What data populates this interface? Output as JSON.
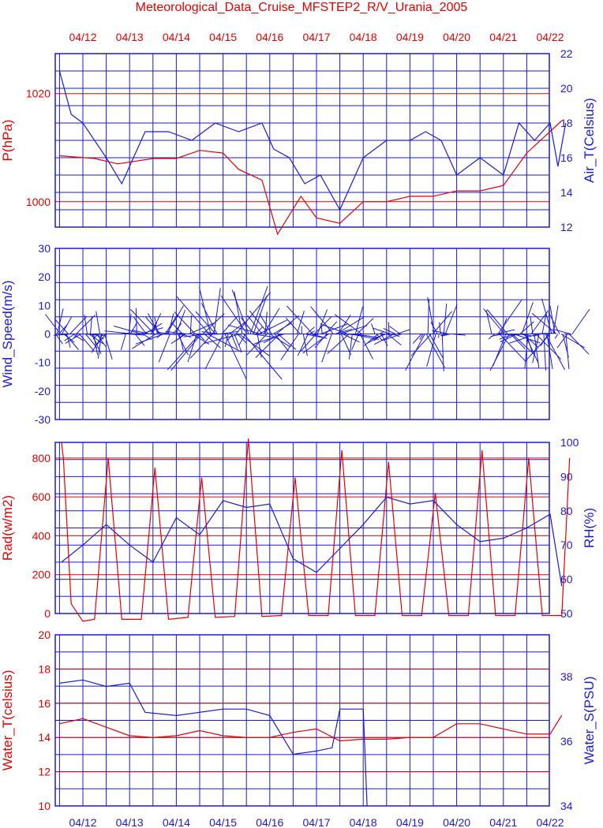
{
  "title": "Meteorological_Data_Cruise_MFSTEP2_R/V_Urania_2005",
  "colors": {
    "red": "#e60000",
    "blue": "#1a1ad6"
  },
  "chart_data": [
    {
      "type": "line",
      "date_ticks": [
        "04/12",
        "04/13",
        "04/14",
        "04/15",
        "04/16",
        "04/17",
        "04/18",
        "04/19",
        "04/20",
        "04/21",
        "04/22"
      ],
      "left_axis": {
        "label": "P(hPa)",
        "ticks": [
          1000,
          1020
        ],
        "color": "red"
      },
      "right_axis": {
        "label": "Air_T(Celsius)",
        "ticks": [
          12,
          14,
          16,
          18,
          20,
          22
        ],
        "ylim": [
          12,
          22
        ],
        "color": "blue"
      },
      "series": [
        {
          "axis": "left",
          "color": "red",
          "x": [
            "04/11 12:00",
            "04/12 06:00",
            "04/12 18:00",
            "04/13 12:00",
            "04/14 00:00",
            "04/14 12:00",
            "04/15 00:00",
            "04/15 08:00",
            "04/15 20:00",
            "04/16 04:00",
            "04/16 16:00",
            "04/17 00:00",
            "04/17 12:00",
            "04/18 00:00",
            "04/18 12:00",
            "04/19 00:00",
            "04/19 12:00",
            "04/20 00:00",
            "04/20 12:00",
            "04/21 00:00",
            "04/21 12:00",
            "04/22 06:00"
          ],
          "y": [
            1008.5,
            1008,
            1007,
            1008,
            1008,
            1009.5,
            1009,
            1006,
            1004,
            994,
            1001,
            997,
            996,
            1000,
            1000,
            1001,
            1001,
            1002,
            1002,
            1003,
            1009,
            1015
          ]
        },
        {
          "axis": "right",
          "color": "blue",
          "x": [
            "04/11 12:00",
            "04/11 18:00",
            "04/12 00:00",
            "04/12 12:00",
            "04/12 20:00",
            "04/13 08:00",
            "04/13 20:00",
            "04/14 08:00",
            "04/14 20:00",
            "04/15 08:00",
            "04/15 20:00",
            "04/16 02:00",
            "04/16 10:00",
            "04/16 18:00",
            "04/17 02:00",
            "04/17 12:00",
            "04/18 00:00",
            "04/18 12:00",
            "04/19 00:00",
            "04/19 08:00",
            "04/19 16:00",
            "04/20 00:00",
            "04/20 12:00",
            "04/21 00:00",
            "04/21 08:00",
            "04/21 16:00",
            "04/22 00:00",
            "04/22 04:00",
            "04/22 08:00"
          ],
          "y": [
            21,
            18.5,
            18,
            16,
            14.5,
            17.5,
            17.5,
            17,
            18,
            17.5,
            18,
            16.5,
            16,
            14.5,
            15,
            13,
            16,
            17,
            17,
            17.5,
            17,
            15,
            16,
            15,
            18,
            17,
            18,
            15.5,
            18
          ]
        }
      ]
    },
    {
      "type": "line",
      "date_ticks": [
        "04/12",
        "04/13",
        "04/14",
        "04/15",
        "04/16",
        "04/17",
        "04/18",
        "04/19",
        "04/20",
        "04/21",
        "04/22"
      ],
      "left_axis": {
        "label": "Wind_Speed(m/s)",
        "ticks": [
          -30,
          -20,
          -10,
          0,
          10,
          20,
          30
        ],
        "ylim": [
          -30,
          30
        ],
        "color": "blue"
      },
      "segments": [
        {
          "from": "04/11 10:00",
          "to": "04/12 12:00",
          "u_max": 8,
          "v_max": 9
        },
        {
          "from": "04/12 22:00",
          "to": "04/14 12:00",
          "u_max": 10,
          "v_max": 10
        },
        {
          "from": "04/14 12:00",
          "to": "04/15 16:00",
          "u_max": 14,
          "v_max": 17
        },
        {
          "from": "04/15 16:00",
          "to": "04/16 08:00",
          "u_max": 12,
          "v_max": 10
        },
        {
          "from": "04/16 14:00",
          "to": "04/18 00:00",
          "u_max": 10,
          "v_max": 10
        },
        {
          "from": "04/18 06:00",
          "to": "04/18 20:00",
          "u_max": 7,
          "v_max": 5
        },
        {
          "from": "04/19 06:00",
          "to": "04/19 22:00",
          "u_max": 8,
          "v_max": 14
        },
        {
          "from": "04/20 18:00",
          "to": "04/22 12:00",
          "u_max": 10,
          "v_max": 13
        }
      ]
    },
    {
      "type": "line",
      "date_ticks": [
        "04/12",
        "04/13",
        "04/14",
        "04/15",
        "04/16",
        "04/17",
        "04/18",
        "04/19",
        "04/20",
        "04/21",
        "04/22"
      ],
      "left_axis": {
        "label": "Rad(w/m2)",
        "ticks": [
          0,
          200,
          400,
          600,
          800
        ],
        "color": "red"
      },
      "right_axis": {
        "label": "RH(%)",
        "ticks": [
          50,
          60,
          70,
          80,
          90,
          100
        ],
        "ylim": [
          50,
          100
        ],
        "color": "blue"
      },
      "series": [
        {
          "axis": "left",
          "color": "red",
          "x": [
            "04/11 13:00",
            "04/11 14:00",
            "04/11 18:00",
            "04/12 00:00",
            "04/12 06:00",
            "04/12 13:00",
            "04/12 20:00",
            "04/13 06:00",
            "04/13 13:00",
            "04/13 20:00",
            "04/14 06:00",
            "04/14 13:00",
            "04/14 20:00",
            "04/15 06:00",
            "04/15 13:00",
            "04/15 20:00",
            "04/16 06:00",
            "04/16 13:00",
            "04/16 20:00",
            "04/17 06:00",
            "04/17 13:00",
            "04/17 20:00",
            "04/18 06:00",
            "04/18 13:00",
            "04/18 20:00",
            "04/19 06:00",
            "04/19 13:00",
            "04/19 20:00",
            "04/20 06:00",
            "04/20 13:00",
            "04/20 20:00",
            "04/21 06:00",
            "04/21 13:00",
            "04/21 20:00",
            "04/22 06:00",
            "04/22 10:00"
          ],
          "y": [
            880,
            800,
            50,
            -40,
            -30,
            800,
            -30,
            -30,
            750,
            -30,
            -20,
            700,
            -20,
            -15,
            900,
            -15,
            -10,
            700,
            -10,
            -10,
            840,
            -10,
            -10,
            780,
            -10,
            -10,
            620,
            -10,
            -10,
            840,
            -10,
            -10,
            800,
            -10,
            -10,
            800
          ]
        },
        {
          "axis": "right",
          "color": "blue",
          "x": [
            "04/11 13:00",
            "04/12 00:00",
            "04/12 12:00",
            "04/13 00:00",
            "04/13 12:00",
            "04/14 00:00",
            "04/14 12:00",
            "04/15 00:00",
            "04/15 12:00",
            "04/16 00:00",
            "04/16 12:00",
            "04/17 00:00",
            "04/17 12:00",
            "04/18 00:00",
            "04/18 12:00",
            "04/19 00:00",
            "04/19 12:00",
            "04/20 00:00",
            "04/20 12:00",
            "04/21 00:00",
            "04/21 12:00",
            "04/22 00:00",
            "04/22 06:00"
          ],
          "y": [
            65,
            70,
            76,
            70,
            65,
            78,
            73,
            83,
            81,
            82,
            66,
            62,
            69,
            76,
            84,
            82,
            83,
            76,
            71,
            72,
            75,
            79,
            58
          ]
        }
      ]
    },
    {
      "type": "line",
      "date_ticks": [
        "04/12",
        "04/13",
        "04/14",
        "04/15",
        "04/16",
        "04/17",
        "04/18",
        "04/19",
        "04/20",
        "04/21",
        "04/22"
      ],
      "left_axis": {
        "label": "Water_T(celsius)",
        "ticks": [
          10,
          12,
          14,
          16,
          18,
          20
        ],
        "ylim": [
          10,
          20
        ],
        "color": "red"
      },
      "right_axis": {
        "label": "Water_S(PSU)",
        "ticks": [
          34,
          36,
          38
        ],
        "color": "blue"
      },
      "series": [
        {
          "axis": "left",
          "color": "red",
          "x": [
            "04/11 12:00",
            "04/12 00:00",
            "04/12 12:00",
            "04/13 00:00",
            "04/13 12:00",
            "04/14 00:00",
            "04/14 12:00",
            "04/15 00:00",
            "04/15 12:00",
            "04/16 00:00",
            "04/16 12:00",
            "04/17 00:00",
            "04/17 12:00",
            "04/18 00:00",
            "04/18 12:00",
            "04/19 00:00",
            "04/19 12:00",
            "04/20 00:00",
            "04/20 12:00",
            "04/21 00:00",
            "04/21 12:00",
            "04/22 00:00",
            "04/22 06:00"
          ],
          "y": [
            14.8,
            15.1,
            14.6,
            14.1,
            14.0,
            14.1,
            14.4,
            14.1,
            14.0,
            14.0,
            14.3,
            14.5,
            13.8,
            13.9,
            13.9,
            14.0,
            14.0,
            14.8,
            14.8,
            14.5,
            14.2,
            14.2,
            15.3
          ]
        },
        {
          "axis": "right",
          "color": "blue",
          "x": [
            "04/11 12:00",
            "04/12 00:00",
            "04/12 12:00",
            "04/13 00:00",
            "04/13 08:00",
            "04/14 00:00",
            "04/14 12:00",
            "04/15 00:00",
            "04/15 12:00",
            "04/16 00:00",
            "04/16 12:00",
            "04/17 00:00",
            "04/17 08:00",
            "04/17 12:00",
            "04/18 00:00",
            "04/18 02:00"
          ],
          "y": [
            37.8,
            37.9,
            37.7,
            37.8,
            36.9,
            36.8,
            36.9,
            37.0,
            37.0,
            36.8,
            35.6,
            35.7,
            35.8,
            37.0,
            37.0,
            34.0
          ]
        }
      ]
    }
  ]
}
